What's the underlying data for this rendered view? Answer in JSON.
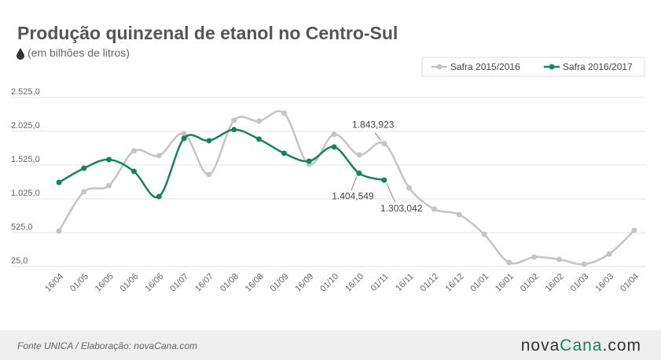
{
  "chart_data": {
    "type": "line",
    "title": "Produção quinzenal de etanol no Centro-Sul",
    "subtitle": "(em bilhões de litros)",
    "categories": [
      "16/04",
      "01/05",
      "16/05",
      "01/06",
      "16/06",
      "01/07",
      "16/07",
      "01/08",
      "16/08",
      "01/09",
      "16/09",
      "01/10",
      "16/10",
      "01/11",
      "16/11",
      "01/12",
      "16/12",
      "01/01",
      "16/01",
      "01/02",
      "16/02",
      "01/03",
      "16/03",
      "01/04"
    ],
    "series": [
      {
        "name": "Safra 2015/2016",
        "color": "#c4c4c4",
        "values": [
          548,
          1130,
          1223,
          1735,
          1665,
          1990,
          1386,
          2188,
          2176,
          2293,
          1537,
          1979,
          1676,
          1843.923,
          1188,
          874,
          793,
          502,
          83,
          165,
          130,
          60,
          211,
          560
        ],
        "value_labels": [
          null,
          null,
          null,
          null,
          null,
          null,
          null,
          null,
          null,
          null,
          null,
          null,
          null,
          "1.843,923",
          null,
          null,
          null,
          null,
          null,
          null,
          null,
          null,
          null,
          null
        ]
      },
      {
        "name": "Safra 2016/2017",
        "color": "#128460",
        "values": [
          1269,
          1479,
          1607,
          1432,
          1060,
          1921,
          1886,
          2049,
          1909,
          1700,
          1583,
          1793,
          1404.549,
          1303.042,
          null,
          null,
          null,
          null,
          null,
          null,
          null,
          null,
          null,
          null
        ],
        "value_labels": [
          null,
          null,
          null,
          null,
          null,
          null,
          null,
          null,
          null,
          null,
          null,
          null,
          "1.404,549",
          "1.303,042",
          null,
          null,
          null,
          null,
          null,
          null,
          null,
          null,
          null,
          null
        ]
      }
    ],
    "ylim": [
      25,
      2525
    ],
    "yticks": [
      {
        "value": 25,
        "label": "25,0"
      },
      {
        "value": 525,
        "label": "525,0"
      },
      {
        "value": 1025,
        "label": "1.025,0"
      },
      {
        "value": 1525,
        "label": "1.525,0"
      },
      {
        "value": 2025,
        "label": "2.025,0"
      },
      {
        "value": 2525,
        "label": "2.525,0"
      }
    ],
    "grid": true,
    "legend": "top-right",
    "source": "Fonte UNICA / Elaboração: novaCana.com",
    "logo": [
      "nova",
      "Cana",
      ".com"
    ]
  }
}
